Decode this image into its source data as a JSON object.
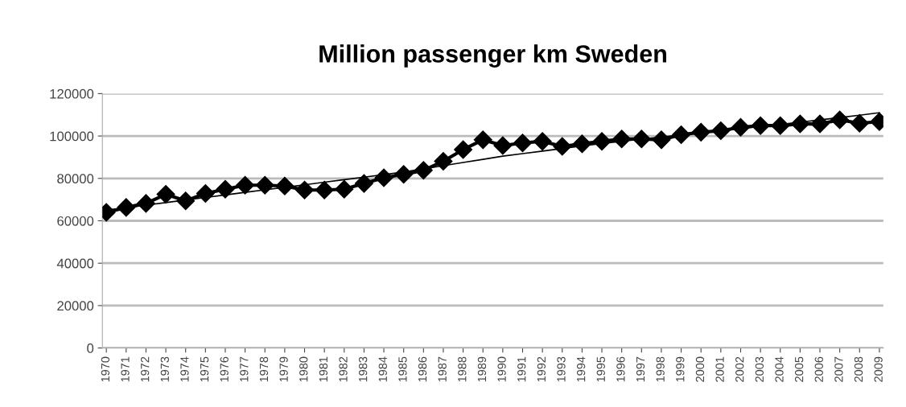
{
  "chart_data": {
    "type": "line",
    "title": "Million passenger km Sweden",
    "categories": [
      "1970",
      "1971",
      "1972",
      "1973",
      "1974",
      "1975",
      "1976",
      "1977",
      "1978",
      "1979",
      "1980",
      "1981",
      "1982",
      "1983",
      "1984",
      "1985",
      "1986",
      "1987",
      "1988",
      "1989",
      "1990",
      "1991",
      "1992",
      "1993",
      "1994",
      "1995",
      "1996",
      "1997",
      "1998",
      "1999",
      "2000",
      "2001",
      "2002",
      "2003",
      "2004",
      "2005",
      "2006",
      "2007",
      "2008",
      "2009"
    ],
    "series": [
      {
        "color": "#000000",
        "marker": "diamond",
        "values": [
          64000,
          66300,
          68200,
          72500,
          69400,
          72900,
          74900,
          76800,
          76800,
          76400,
          74500,
          74500,
          74900,
          77600,
          80300,
          81900,
          83800,
          88100,
          93600,
          98200,
          95500,
          96700,
          97500,
          95100,
          96300,
          97500,
          98600,
          98600,
          98200,
          100600,
          101800,
          102500,
          104100,
          104900,
          104900,
          105700,
          105700,
          107600,
          106000,
          106800
        ]
      },
      {
        "type": "line",
        "color": "#000000",
        "marker": "none",
        "values": [
          65000,
          66200,
          67400,
          68600,
          69800,
          71000,
          72200,
          73400,
          74600,
          75800,
          77000,
          78200,
          79400,
          80600,
          81800,
          83000,
          84500,
          86000,
          87500,
          89000,
          90500,
          91700,
          92900,
          94100,
          95300,
          96500,
          97500,
          98500,
          99500,
          100500,
          101500,
          102500,
          103500,
          104500,
          105500,
          106500,
          107600,
          108700,
          109800,
          111000
        ]
      }
    ],
    "ylim": [
      0,
      120000
    ],
    "yticks": [
      0,
      20000,
      40000,
      60000,
      80000,
      100000,
      120000
    ],
    "grid": "y",
    "legend": false
  }
}
